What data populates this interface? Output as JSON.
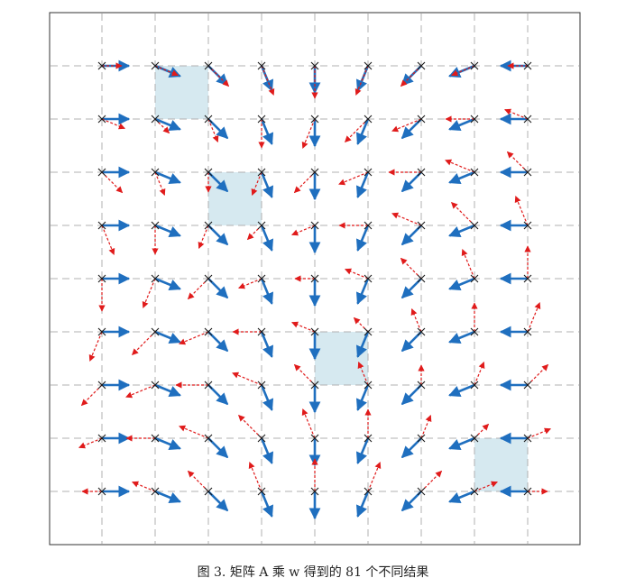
{
  "caption": "图 3. 矩阵 A 乘 w 得到的 81 个不同结果",
  "colors": {
    "frame": "#333333",
    "grid": "#b0b0b0",
    "highlight": "#d6e9f0",
    "blue_arrow": "#1f6fbf",
    "red_arrow": "#e01b1b",
    "marker": "#1a1a1a"
  }
}
